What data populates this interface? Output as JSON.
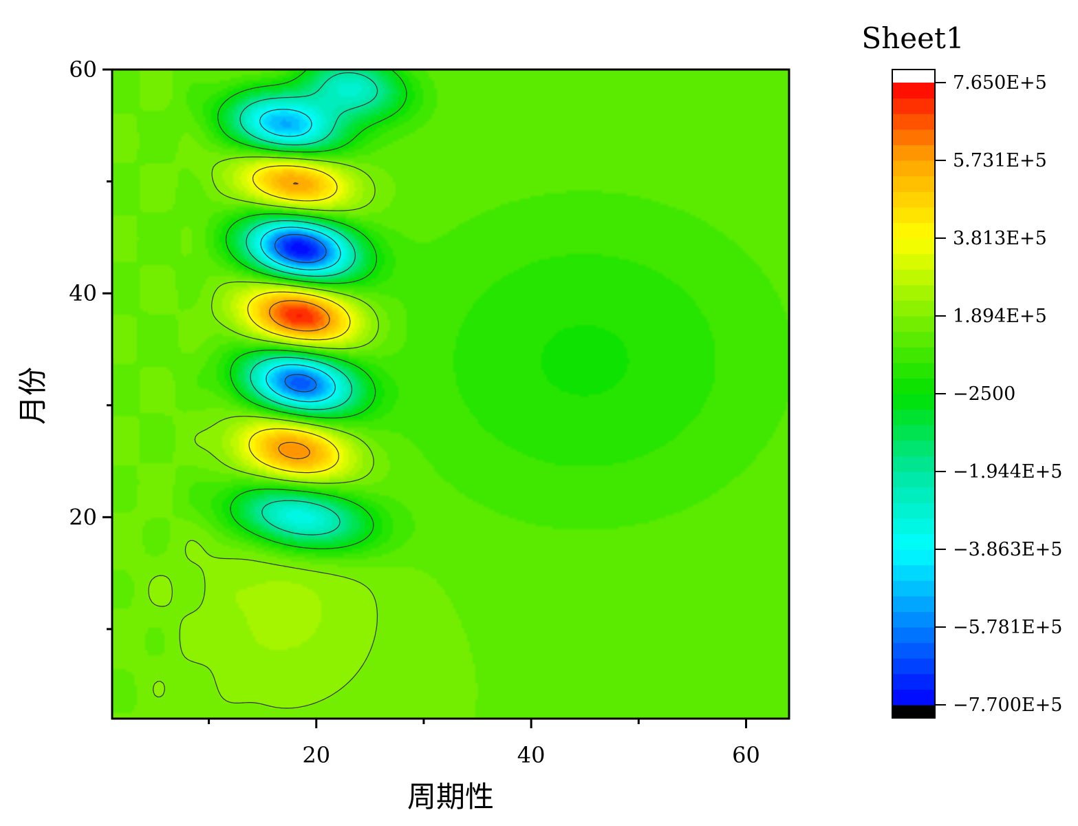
{
  "chart_data": {
    "type": "heatmap",
    "subtype": "filled-contour",
    "xlabel": "周期性",
    "ylabel": "月份",
    "xlim": [
      1,
      64
    ],
    "ylim": [
      2,
      60
    ],
    "x_ticks": [
      20,
      40,
      60
    ],
    "x_tick_labels": [
      "20",
      "40",
      "60"
    ],
    "y_ticks": [
      20,
      40,
      60
    ],
    "y_tick_labels": [
      "20",
      "40",
      "60"
    ],
    "x_minor_ticks": [
      10,
      30,
      50
    ],
    "y_minor_ticks": [
      10,
      30,
      50
    ],
    "colorbar": {
      "title": "Sheet1",
      "min": -770000,
      "max": 765000,
      "tick_values": [
        765000,
        573100,
        381300,
        189400,
        -2500,
        -194400,
        -386300,
        -578100,
        -770000
      ],
      "tick_labels": [
        "7.650E+5",
        "5.731E+5",
        "3.813E+5",
        "1.894E+5",
        "−2500",
        "−1.944E+5",
        "−3.863E+5",
        "−5.781E+5",
        "−7.700E+5"
      ],
      "colormap": [
        "#0000ff",
        "#0080ff",
        "#00ffff",
        "#00e5a0",
        "#00e000",
        "#80f000",
        "#ffff00",
        "#ffa500",
        "#ff0000"
      ],
      "above_color": "#ffffff",
      "below_color": "#000000",
      "levels": 40
    },
    "features": [
      {
        "kind": "max",
        "x": 18,
        "y": 26,
        "value": 620000
      },
      {
        "kind": "min",
        "x": 18.5,
        "y": 32,
        "value": -640000
      },
      {
        "kind": "max",
        "x": 18.5,
        "y": 38,
        "value": 760000
      },
      {
        "kind": "min",
        "x": 18.5,
        "y": 44,
        "value": -760000
      },
      {
        "kind": "max",
        "x": 18,
        "y": 50,
        "value": 620000
      },
      {
        "kind": "min",
        "x": 17,
        "y": 55,
        "value": -520000
      },
      {
        "kind": "min",
        "x": 23,
        "y": 58.5,
        "value": -320000
      },
      {
        "kind": "min",
        "x": 18.5,
        "y": 20,
        "value": -380000
      },
      {
        "kind": "max",
        "x": 19,
        "y": 59.5,
        "value": 250000
      }
    ]
  }
}
